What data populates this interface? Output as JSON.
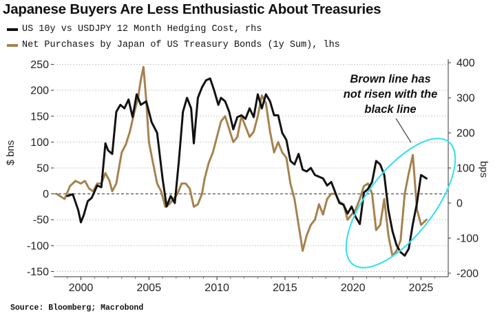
{
  "title": "Japanese Buyers Are Less Enthusiastic About Treasuries",
  "source": "Source: Bloomberg; Macrobond",
  "colors": {
    "hedge": "#111111",
    "purchases": "#a5824d",
    "highlight": "#3ee0ee",
    "grid": "#c9c9c9",
    "zero": "#555555"
  },
  "chart_data": {
    "type": "line",
    "title": "Japanese Buyers Are Less Enthusiastic About Treasuries",
    "xlabel": "",
    "ylabel_left": "$ bns",
    "ylabel_right": "bps",
    "xlim": [
      1998,
      2027
    ],
    "ylim_left": [
      -160,
      260
    ],
    "ylim_right": [
      -210,
      410
    ],
    "x_ticks": [
      2000,
      2005,
      2010,
      2015,
      2020,
      2025
    ],
    "x_tick_labels": [
      "2000",
      "2005",
      "2010",
      "2015",
      "2020",
      "2025"
    ],
    "y_left_ticks": [
      250,
      200,
      150,
      100,
      50,
      0,
      -50,
      -100,
      -150
    ],
    "y_left_tick_labels": [
      "250",
      "200",
      "150",
      "100",
      "50",
      "0",
      "-50",
      "-100",
      "-150"
    ],
    "y_right_ticks": [
      400,
      300,
      200,
      100,
      0,
      -100,
      -200
    ],
    "y_right_tick_labels": [
      "400",
      "300",
      "200",
      "100",
      "0",
      "-100",
      "-200"
    ],
    "grid": true,
    "zero_line": "dashed",
    "legend_position": "top-left",
    "annotation": "Brown line has not risen with the black line",
    "annotation_lines": [
      "Brown line has",
      "not risen with the",
      "black line"
    ],
    "highlight": "ellipse around 2020-2027",
    "series": [
      {
        "name": "US 10y vs USDJPY 12 Month Hedging Cost, rhs",
        "axis": "right",
        "color": "#111111",
        "x": [
          1999.0,
          1999.4,
          1999.8,
          2000.0,
          2000.2,
          2000.5,
          2000.8,
          2001.2,
          2001.5,
          2001.8,
          2002.0,
          2002.3,
          2002.6,
          2002.9,
          2003.2,
          2003.5,
          2003.8,
          2004.1,
          2004.4,
          2004.8,
          2005.2,
          2005.6,
          2006.0,
          2006.3,
          2006.6,
          2006.9,
          2007.2,
          2007.5,
          2007.8,
          2008.1,
          2008.3,
          2008.6,
          2008.9,
          2009.2,
          2009.5,
          2009.8,
          2010.1,
          2010.3,
          2010.6,
          2010.9,
          2011.2,
          2011.5,
          2011.8,
          2012.1,
          2012.4,
          2012.7,
          2013.0,
          2013.3,
          2013.6,
          2013.9,
          2014.2,
          2014.5,
          2014.8,
          2015.1,
          2015.4,
          2015.7,
          2016.0,
          2016.3,
          2016.6,
          2016.9,
          2017.2,
          2017.5,
          2017.8,
          2018.1,
          2018.4,
          2018.7,
          2019.0,
          2019.3,
          2019.6,
          2019.9,
          2020.2,
          2020.5,
          2020.8,
          2021.1,
          2021.4,
          2021.7,
          2022.0,
          2022.3,
          2022.6,
          2022.9,
          2023.2,
          2023.5,
          2023.8,
          2024.1,
          2024.4,
          2024.7,
          2025.0,
          2025.4
        ],
        "values": [
          20,
          25,
          -20,
          -55,
          -35,
          5,
          15,
          50,
          45,
          170,
          150,
          140,
          260,
          280,
          270,
          295,
          245,
          310,
          280,
          290,
          230,
          200,
          70,
          -10,
          20,
          0,
          120,
          260,
          300,
          270,
          170,
          300,
          330,
          350,
          355,
          320,
          280,
          300,
          290,
          260,
          210,
          245,
          250,
          240,
          270,
          245,
          310,
          270,
          310,
          290,
          250,
          250,
          200,
          180,
          120,
          110,
          140,
          95,
          90,
          100,
          80,
          75,
          70,
          50,
          60,
          30,
          0,
          -5,
          -30,
          -10,
          -40,
          -60,
          30,
          40,
          60,
          120,
          110,
          80,
          -20,
          -80,
          -120,
          -140,
          -150,
          -130,
          -60,
          0,
          80,
          70
        ]
      },
      {
        "name": "Net Purchases by Japan of US Treasury Bonds (1y Sum), lhs",
        "axis": "left",
        "color": "#a5824d",
        "x": [
          1998.2,
          1998.5,
          1998.8,
          1999.2,
          1999.6,
          2000.0,
          2000.3,
          2000.6,
          2000.9,
          2001.2,
          2001.5,
          2001.8,
          2002.1,
          2002.3,
          2002.6,
          2002.8,
          2003.0,
          2003.3,
          2003.6,
          2003.9,
          2004.2,
          2004.4,
          2004.6,
          2004.8,
          2005.0,
          2005.3,
          2005.6,
          2005.9,
          2006.2,
          2006.5,
          2006.8,
          2007.1,
          2007.4,
          2007.7,
          2008.0,
          2008.3,
          2008.6,
          2008.9,
          2009.1,
          2009.4,
          2009.7,
          2010.0,
          2010.3,
          2010.6,
          2010.9,
          2011.2,
          2011.5,
          2011.8,
          2012.1,
          2012.4,
          2012.7,
          2013.0,
          2013.3,
          2013.6,
          2013.9,
          2014.2,
          2014.5,
          2014.8,
          2015.1,
          2015.4,
          2015.7,
          2016.0,
          2016.3,
          2016.6,
          2016.9,
          2017.2,
          2017.5,
          2017.8,
          2018.1,
          2018.4,
          2018.7,
          2019.0,
          2019.3,
          2019.6,
          2019.9,
          2020.2,
          2020.5,
          2020.8,
          2021.1,
          2021.4,
          2021.7,
          2022.0,
          2022.3,
          2022.6,
          2022.9,
          2023.2,
          2023.5,
          2023.8,
          2024.1,
          2024.4,
          2024.7,
          2025.0,
          2025.4
        ],
        "values": [
          0,
          -5,
          -10,
          15,
          25,
          20,
          25,
          10,
          5,
          20,
          20,
          40,
          25,
          5,
          20,
          50,
          80,
          95,
          120,
          155,
          185,
          220,
          245,
          180,
          100,
          60,
          20,
          5,
          -25,
          -20,
          -10,
          0,
          20,
          20,
          10,
          -25,
          -20,
          0,
          30,
          60,
          80,
          110,
          140,
          150,
          125,
          100,
          110,
          150,
          130,
          110,
          120,
          150,
          190,
          175,
          120,
          80,
          100,
          80,
          70,
          20,
          -10,
          -60,
          -110,
          -80,
          -60,
          -50,
          -20,
          -40,
          -10,
          0,
          0,
          -15,
          -20,
          -50,
          -40,
          -30,
          -10,
          15,
          20,
          0,
          -70,
          -60,
          -10,
          -80,
          -120,
          -110,
          -90,
          0,
          40,
          75,
          -30,
          -60,
          -50
        ]
      }
    ]
  }
}
